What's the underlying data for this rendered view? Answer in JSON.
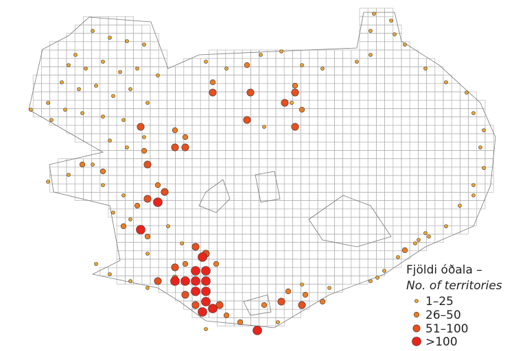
{
  "legend": {
    "title": "Fjöldi óðala –",
    "subtitle": "No. of territories",
    "items": [
      "1–25",
      "26–50",
      "51–100",
      ">100"
    ]
  }
}
